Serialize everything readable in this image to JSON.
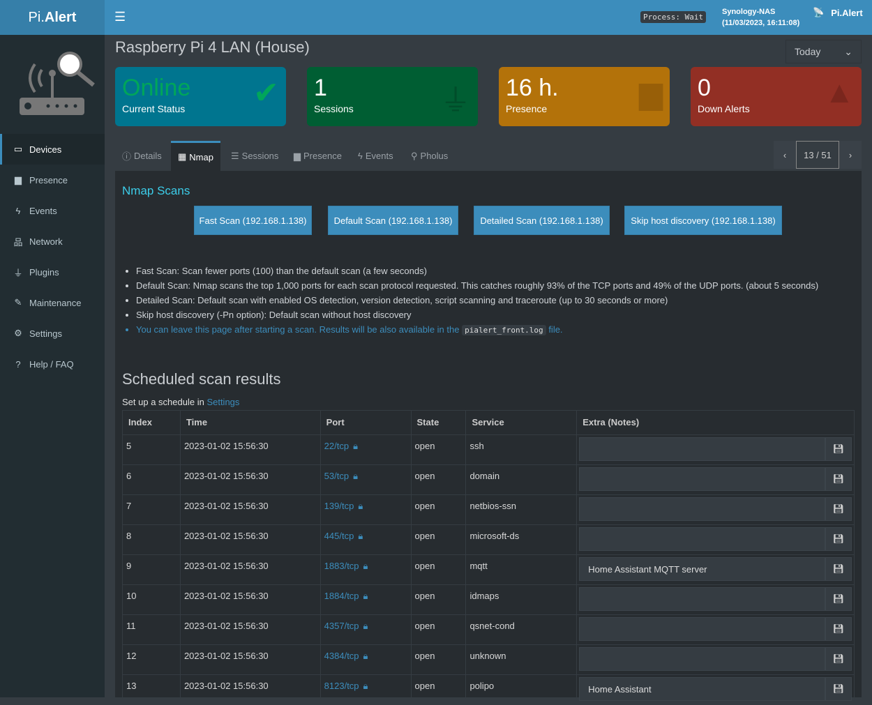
{
  "app": {
    "logo_pre": "Pi.",
    "logo_bold": "Alert",
    "process": "Process: Wait",
    "host": "Synology-NAS",
    "host_time": "(11/03/2023, 16:11:08)",
    "brand": "Pi.Alert"
  },
  "sidebar": {
    "items": [
      {
        "label": "Devices",
        "icon": "laptop-icon",
        "glyph": "💻"
      },
      {
        "label": "Presence",
        "icon": "calendar-icon",
        "glyph": "▆"
      },
      {
        "label": "Events",
        "icon": "bolt-icon",
        "glyph": "⚡"
      },
      {
        "label": "Network",
        "icon": "sitemap-icon",
        "glyph": "⊞"
      },
      {
        "label": "Plugins",
        "icon": "plug-icon",
        "glyph": "⏚"
      },
      {
        "label": "Maintenance",
        "icon": "wrench-icon",
        "glyph": "🔧"
      },
      {
        "label": "Settings",
        "icon": "gear-icon",
        "glyph": "⚙"
      },
      {
        "label": "Help / FAQ",
        "icon": "question-icon",
        "glyph": "?"
      }
    ]
  },
  "page": {
    "title": "Raspberry Pi 4 LAN (House)",
    "period": "Today"
  },
  "cards": [
    {
      "value": "Online",
      "label": "Current Status",
      "color": "#00758f"
    },
    {
      "value": "1",
      "label": "Sessions",
      "color": "#005e33"
    },
    {
      "value": "16 h.",
      "label": "Presence",
      "color": "#b3720a"
    },
    {
      "value": "0",
      "label": "Down Alerts",
      "color": "#922f24"
    }
  ],
  "tabs": [
    "Details",
    "Nmap",
    "Sessions",
    "Presence",
    "Events",
    "Pholus"
  ],
  "pager": "13 / 51",
  "nmap": {
    "title": "Nmap Scans",
    "buttons": [
      "Fast Scan (192.168.1.138)",
      "Default Scan (192.168.1.138)",
      "Detailed Scan (192.168.1.138)",
      "Skip host discovery (192.168.1.138)"
    ],
    "notes": [
      "Fast Scan: Scan fewer ports (100) than the default scan (a few seconds)",
      "Default Scan: Nmap scans the top 1,000 ports for each scan protocol requested. This catches roughly 93% of the TCP ports and 49% of the UDP ports. (about 5 seconds)",
      "Detailed Scan: Default scan with enabled OS detection, version detection, script scanning and traceroute (up to 30 seconds or more)",
      "Skip host discovery (-Pn option): Default scan without host discovery"
    ],
    "note_link_pre": "You can leave this page after starting a scan. Results will be also available in the",
    "note_code": "pialert_front.log",
    "note_link_post": "file."
  },
  "scheduled": {
    "title": "Scheduled scan results",
    "setup_pre": "Set up a schedule in",
    "setup_link": "Settings",
    "columns": [
      "Index",
      "Time",
      "Port",
      "State",
      "Service",
      "Extra (Notes)"
    ],
    "rows": [
      [
        "5",
        "2023-01-02 15:56:30",
        "22/tcp",
        "open",
        "ssh",
        ""
      ],
      [
        "6",
        "2023-01-02 15:56:30",
        "53/tcp",
        "open",
        "domain",
        ""
      ],
      [
        "7",
        "2023-01-02 15:56:30",
        "139/tcp",
        "open",
        "netbios-ssn",
        ""
      ],
      [
        "8",
        "2023-01-02 15:56:30",
        "445/tcp",
        "open",
        "microsoft-ds",
        ""
      ],
      [
        "9",
        "2023-01-02 15:56:30",
        "1883/tcp",
        "open",
        "mqtt",
        "Home Assistant MQTT server"
      ],
      [
        "10",
        "2023-01-02 15:56:30",
        "1884/tcp",
        "open",
        "idmaps",
        ""
      ],
      [
        "11",
        "2023-01-02 15:56:30",
        "4357/tcp",
        "open",
        "qsnet-cond",
        ""
      ],
      [
        "12",
        "2023-01-02 15:56:30",
        "4384/tcp",
        "open",
        "unknown",
        ""
      ],
      [
        "13",
        "2023-01-02 15:56:30",
        "8123/tcp",
        "open",
        "polipo",
        "Home Assistant"
      ]
    ]
  }
}
